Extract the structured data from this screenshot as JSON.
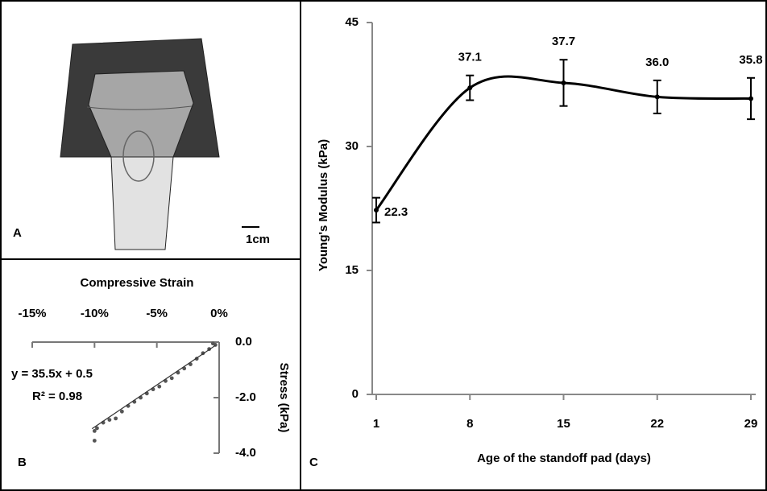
{
  "panels": {
    "a": {
      "label": "A",
      "scale_bar": "1cm"
    }
  },
  "chart_data": [
    {
      "type": "scatter",
      "panel_label": "B",
      "title": "Compressive Strain",
      "y_label": "Stress (kPa)",
      "annotations": [
        "y = 35.5x + 0.5",
        "R² = 0.98"
      ],
      "x": [
        -10.0,
        -10.0,
        -9.8,
        -9.3,
        -8.8,
        -8.3,
        -7.8,
        -7.3,
        -6.8,
        -6.3,
        -5.8,
        -5.3,
        -4.8,
        -4.3,
        -3.8,
        -3.3,
        -2.8,
        -2.3,
        -1.8,
        -1.3,
        -0.8,
        -0.5,
        -0.3
      ],
      "values": [
        -3.55,
        -3.2,
        -3.1,
        -2.9,
        -2.8,
        -2.75,
        -2.5,
        -2.3,
        -2.15,
        -2.0,
        -1.85,
        -1.7,
        -1.6,
        -1.4,
        -1.3,
        -1.1,
        -0.95,
        -0.8,
        -0.6,
        -0.4,
        -0.25,
        -0.05,
        -0.1
      ],
      "color": "#555555",
      "trendline": {
        "x": [
          -10.2,
          -0.3
        ],
        "values": [
          -3.12,
          -0.12
        ],
        "color": "#333333"
      },
      "xlim": [
        -15,
        0
      ],
      "xticks": [
        {
          "value": -15,
          "label": "-15%"
        },
        {
          "value": -10,
          "label": "-10%"
        },
        {
          "value": -5,
          "label": "-5%"
        },
        {
          "value": 0,
          "label": "0%"
        }
      ],
      "ylim": [
        -4,
        0
      ],
      "yticks": [
        {
          "value": 0,
          "label": "0.0"
        },
        {
          "value": -2,
          "label": "-2.0"
        },
        {
          "value": -4,
          "label": "-4.0"
        }
      ]
    },
    {
      "type": "line",
      "panel_label": "C",
      "x_label": "Age of the standoff pad (days)",
      "y_label": "Young's Modulus (kPa)",
      "x": [
        1,
        8,
        15,
        22,
        29
      ],
      "values": [
        22.3,
        37.1,
        37.7,
        36.0,
        35.8
      ],
      "value_labels": [
        "22.3",
        "37.1",
        "37.7",
        "36.0",
        "35.8"
      ],
      "errors": [
        1.5,
        1.5,
        2.8,
        2.0,
        2.5
      ],
      "color": "#000000",
      "xlim": [
        1,
        29
      ],
      "xticks": [
        1,
        8,
        15,
        22,
        29
      ],
      "ylim": [
        0,
        45
      ],
      "yticks": [
        0,
        15,
        30,
        45
      ]
    }
  ]
}
